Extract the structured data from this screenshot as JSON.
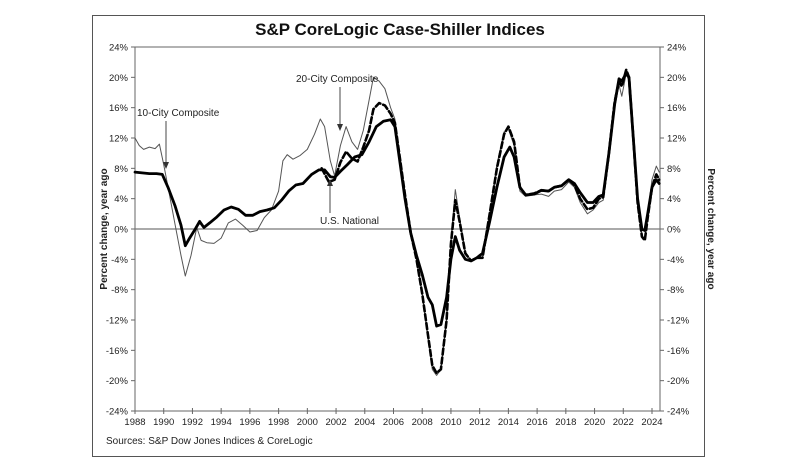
{
  "chart_data": {
    "type": "line",
    "title": "S&P CoreLogic Case-Shiller Indices",
    "ylabel_left": "Percent change, year ago",
    "ylabel_right": "Percent change, year ago",
    "xlabel": "",
    "source": "Sources:  S&P Dow Jones Indices & CoreLogic",
    "xlim": [
      1988,
      2024.6
    ],
    "ylim": [
      -24,
      24
    ],
    "grid": false,
    "x_ticks": [
      1988,
      1990,
      1992,
      1994,
      1996,
      1998,
      2000,
      2002,
      2004,
      2006,
      2008,
      2010,
      2012,
      2014,
      2016,
      2018,
      2020,
      2022,
      2024
    ],
    "y_ticks": [
      24,
      20,
      16,
      12,
      8,
      4,
      0,
      -4,
      -8,
      -12,
      -16,
      -20,
      -24
    ],
    "y_tick_labels": [
      "24%",
      "20%",
      "16%",
      "12%",
      "8%",
      "4%",
      "0%",
      "-4%",
      "-8%",
      "-12%",
      "-16%",
      "-20%",
      "-24%"
    ],
    "annotations": [
      {
        "text": "10-City Composite",
        "series": "10-City Composite"
      },
      {
        "text": "20-City Composite",
        "series": "20-City Composite"
      },
      {
        "text": "U.S. National",
        "series": "U.S. National"
      }
    ],
    "series": [
      {
        "name": "U.S. National",
        "style": "thick-solid",
        "color": "#000000",
        "points": [
          [
            1988.0,
            7.5
          ],
          [
            1988.5,
            7.4
          ],
          [
            1989.0,
            7.3
          ],
          [
            1989.5,
            7.3
          ],
          [
            1989.9,
            7.2
          ],
          [
            1990.3,
            5.5
          ],
          [
            1990.8,
            3.0
          ],
          [
            1991.2,
            0.5
          ],
          [
            1991.5,
            -2.2
          ],
          [
            1991.8,
            -1.2
          ],
          [
            1992.2,
            0.0
          ],
          [
            1992.5,
            1.0
          ],
          [
            1992.8,
            0.2
          ],
          [
            1993.2,
            0.8
          ],
          [
            1993.7,
            1.6
          ],
          [
            1994.2,
            2.5
          ],
          [
            1994.7,
            2.9
          ],
          [
            1995.2,
            2.6
          ],
          [
            1995.7,
            1.8
          ],
          [
            1996.2,
            1.8
          ],
          [
            1996.7,
            2.3
          ],
          [
            1997.2,
            2.5
          ],
          [
            1997.7,
            2.8
          ],
          [
            1998.2,
            3.8
          ],
          [
            1998.7,
            5.0
          ],
          [
            1999.2,
            5.8
          ],
          [
            1999.7,
            6.0
          ],
          [
            2000.3,
            7.2
          ],
          [
            2000.8,
            7.8
          ],
          [
            2001.2,
            7.8
          ],
          [
            2001.6,
            6.9
          ],
          [
            2001.9,
            6.8
          ],
          [
            2002.3,
            7.6
          ],
          [
            2002.8,
            8.5
          ],
          [
            2003.3,
            9.5
          ],
          [
            2003.8,
            9.8
          ],
          [
            2004.3,
            11.5
          ],
          [
            2004.8,
            13.5
          ],
          [
            2005.3,
            14.2
          ],
          [
            2005.8,
            14.4
          ],
          [
            2006.1,
            13.5
          ],
          [
            2006.4,
            9.5
          ],
          [
            2006.8,
            4.0
          ],
          [
            2007.2,
            -0.5
          ],
          [
            2007.6,
            -3.5
          ],
          [
            2008.0,
            -6.0
          ],
          [
            2008.4,
            -9.0
          ],
          [
            2008.7,
            -10.0
          ],
          [
            2009.0,
            -12.8
          ],
          [
            2009.3,
            -12.6
          ],
          [
            2009.7,
            -9.0
          ],
          [
            2010.0,
            -4.0
          ],
          [
            2010.3,
            -1.0
          ],
          [
            2010.6,
            -2.8
          ],
          [
            2011.0,
            -4.0
          ],
          [
            2011.4,
            -4.2
          ],
          [
            2011.8,
            -3.8
          ],
          [
            2012.2,
            -3.2
          ],
          [
            2012.7,
            1.0
          ],
          [
            2013.2,
            5.5
          ],
          [
            2013.7,
            9.5
          ],
          [
            2014.1,
            10.8
          ],
          [
            2014.4,
            9.5
          ],
          [
            2014.8,
            5.5
          ],
          [
            2015.2,
            4.5
          ],
          [
            2015.8,
            4.6
          ],
          [
            2016.3,
            5.1
          ],
          [
            2016.8,
            5.0
          ],
          [
            2017.2,
            5.5
          ],
          [
            2017.7,
            5.7
          ],
          [
            2018.2,
            6.5
          ],
          [
            2018.6,
            6.0
          ],
          [
            2019.0,
            4.8
          ],
          [
            2019.5,
            3.5
          ],
          [
            2019.9,
            3.5
          ],
          [
            2020.3,
            4.3
          ],
          [
            2020.6,
            4.5
          ],
          [
            2021.0,
            10.0
          ],
          [
            2021.4,
            16.5
          ],
          [
            2021.7,
            19.8
          ],
          [
            2021.9,
            19.5
          ],
          [
            2022.2,
            20.5
          ],
          [
            2022.4,
            20.0
          ],
          [
            2022.7,
            12.0
          ],
          [
            2023.0,
            4.0
          ],
          [
            2023.3,
            0.0
          ],
          [
            2023.5,
            -0.2
          ],
          [
            2023.7,
            2.0
          ],
          [
            2024.0,
            5.5
          ],
          [
            2024.3,
            6.5
          ],
          [
            2024.5,
            6.0
          ]
        ]
      },
      {
        "name": "20-City Composite",
        "style": "thick-dashed",
        "color": "#000000",
        "points": [
          [
            2001.0,
            8.0
          ],
          [
            2001.5,
            6.2
          ],
          [
            2001.9,
            6.5
          ],
          [
            2002.3,
            8.8
          ],
          [
            2002.7,
            10.2
          ],
          [
            2003.1,
            9.3
          ],
          [
            2003.5,
            8.9
          ],
          [
            2003.9,
            10.8
          ],
          [
            2004.3,
            13.0
          ],
          [
            2004.6,
            15.8
          ],
          [
            2005.0,
            16.6
          ],
          [
            2005.4,
            16.3
          ],
          [
            2005.8,
            15.2
          ],
          [
            2006.1,
            14.0
          ],
          [
            2006.4,
            10.0
          ],
          [
            2006.8,
            4.5
          ],
          [
            2007.2,
            -0.5
          ],
          [
            2007.6,
            -4.0
          ],
          [
            2008.0,
            -8.5
          ],
          [
            2008.4,
            -14.0
          ],
          [
            2008.7,
            -18.0
          ],
          [
            2009.0,
            -19.0
          ],
          [
            2009.3,
            -18.5
          ],
          [
            2009.7,
            -12.0
          ],
          [
            2010.0,
            -2.0
          ],
          [
            2010.3,
            3.8
          ],
          [
            2010.6,
            1.0
          ],
          [
            2011.0,
            -3.2
          ],
          [
            2011.4,
            -4.2
          ],
          [
            2011.8,
            -3.8
          ],
          [
            2012.2,
            -3.8
          ],
          [
            2012.7,
            2.0
          ],
          [
            2013.2,
            8.0
          ],
          [
            2013.7,
            12.5
          ],
          [
            2014.0,
            13.5
          ],
          [
            2014.4,
            11.5
          ],
          [
            2014.8,
            5.5
          ],
          [
            2015.2,
            4.5
          ],
          [
            2015.8,
            4.7
          ],
          [
            2016.3,
            5.1
          ],
          [
            2016.8,
            5.0
          ],
          [
            2017.2,
            5.5
          ],
          [
            2017.7,
            5.7
          ],
          [
            2018.2,
            6.5
          ],
          [
            2018.6,
            5.8
          ],
          [
            2019.0,
            4.0
          ],
          [
            2019.5,
            2.6
          ],
          [
            2019.9,
            2.8
          ],
          [
            2020.3,
            4.0
          ],
          [
            2020.6,
            4.2
          ],
          [
            2021.0,
            10.0
          ],
          [
            2021.4,
            16.8
          ],
          [
            2021.7,
            19.5
          ],
          [
            2021.9,
            18.8
          ],
          [
            2022.2,
            21.0
          ],
          [
            2022.4,
            20.0
          ],
          [
            2022.7,
            12.0
          ],
          [
            2023.0,
            3.5
          ],
          [
            2023.3,
            -1.0
          ],
          [
            2023.5,
            -1.5
          ],
          [
            2023.7,
            1.5
          ],
          [
            2024.0,
            5.5
          ],
          [
            2024.3,
            7.2
          ],
          [
            2024.5,
            6.5
          ]
        ]
      },
      {
        "name": "10-City Composite",
        "style": "thin-solid",
        "color": "#555555",
        "points": [
          [
            1988.0,
            12.0
          ],
          [
            1988.3,
            11.0
          ],
          [
            1988.6,
            10.5
          ],
          [
            1989.0,
            10.8
          ],
          [
            1989.4,
            10.6
          ],
          [
            1989.7,
            11.2
          ],
          [
            1990.0,
            8.5
          ],
          [
            1990.4,
            4.5
          ],
          [
            1990.8,
            0.5
          ],
          [
            1991.2,
            -3.5
          ],
          [
            1991.5,
            -6.2
          ],
          [
            1991.9,
            -3.5
          ],
          [
            1992.3,
            0.2
          ],
          [
            1992.6,
            -1.5
          ],
          [
            1993.0,
            -1.8
          ],
          [
            1993.5,
            -1.9
          ],
          [
            1994.0,
            -1.2
          ],
          [
            1994.5,
            0.8
          ],
          [
            1995.0,
            1.3
          ],
          [
            1995.5,
            0.5
          ],
          [
            1996.0,
            -0.4
          ],
          [
            1996.5,
            -0.2
          ],
          [
            1997.0,
            1.5
          ],
          [
            1997.5,
            2.5
          ],
          [
            1998.0,
            5.0
          ],
          [
            1998.3,
            9.0
          ],
          [
            1998.6,
            9.8
          ],
          [
            1999.0,
            9.2
          ],
          [
            1999.5,
            9.7
          ],
          [
            2000.0,
            10.5
          ],
          [
            2000.5,
            12.5
          ],
          [
            2000.9,
            14.5
          ],
          [
            2001.2,
            13.5
          ],
          [
            2001.6,
            9.0
          ],
          [
            2001.9,
            7.0
          ],
          [
            2002.3,
            11.0
          ],
          [
            2002.7,
            13.5
          ],
          [
            2003.1,
            11.5
          ],
          [
            2003.5,
            10.5
          ],
          [
            2003.9,
            13.0
          ],
          [
            2004.3,
            17.0
          ],
          [
            2004.6,
            20.0
          ],
          [
            2005.0,
            19.5
          ],
          [
            2005.4,
            18.5
          ],
          [
            2005.8,
            16.0
          ],
          [
            2006.1,
            14.5
          ],
          [
            2006.4,
            10.0
          ],
          [
            2006.8,
            4.5
          ],
          [
            2007.2,
            -0.5
          ],
          [
            2007.6,
            -4.0
          ],
          [
            2008.0,
            -8.5
          ],
          [
            2008.4,
            -14.5
          ],
          [
            2008.7,
            -18.5
          ],
          [
            2009.0,
            -19.3
          ],
          [
            2009.3,
            -18.5
          ],
          [
            2009.7,
            -12.0
          ],
          [
            2010.0,
            -1.5
          ],
          [
            2010.3,
            5.2
          ],
          [
            2010.6,
            1.5
          ],
          [
            2011.0,
            -3.0
          ],
          [
            2011.4,
            -4.2
          ],
          [
            2011.8,
            -3.8
          ],
          [
            2012.2,
            -3.8
          ],
          [
            2012.7,
            2.0
          ],
          [
            2013.2,
            8.5
          ],
          [
            2013.7,
            12.8
          ],
          [
            2014.0,
            13.2
          ],
          [
            2014.4,
            11.0
          ],
          [
            2014.8,
            5.0
          ],
          [
            2015.2,
            4.3
          ],
          [
            2015.8,
            4.5
          ],
          [
            2016.3,
            4.6
          ],
          [
            2016.8,
            4.3
          ],
          [
            2017.2,
            5.0
          ],
          [
            2017.7,
            5.2
          ],
          [
            2018.2,
            6.2
          ],
          [
            2018.6,
            5.5
          ],
          [
            2019.0,
            3.5
          ],
          [
            2019.5,
            2.0
          ],
          [
            2019.9,
            2.5
          ],
          [
            2020.3,
            3.5
          ],
          [
            2020.6,
            3.8
          ],
          [
            2021.0,
            9.5
          ],
          [
            2021.4,
            16.0
          ],
          [
            2021.7,
            19.0
          ],
          [
            2021.9,
            17.5
          ],
          [
            2022.2,
            20.5
          ],
          [
            2022.4,
            19.5
          ],
          [
            2022.7,
            11.0
          ],
          [
            2023.0,
            3.0
          ],
          [
            2023.3,
            -1.0
          ],
          [
            2023.5,
            -1.2
          ],
          [
            2023.7,
            2.0
          ],
          [
            2024.0,
            6.5
          ],
          [
            2024.3,
            8.3
          ],
          [
            2024.5,
            7.5
          ]
        ]
      }
    ]
  }
}
